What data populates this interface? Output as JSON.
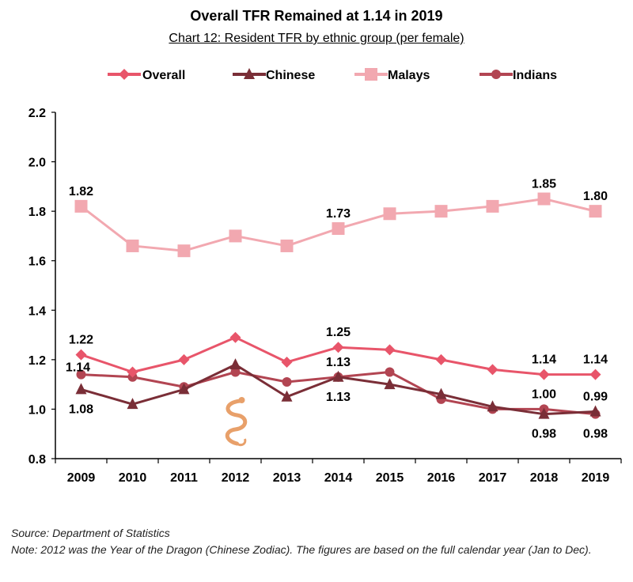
{
  "title": "Overall TFR Remained at 1.14 in 2019",
  "subtitle": "Chart 12: Resident TFR by ethnic group (per female)",
  "source": "Source: Department of Statistics",
  "note": "Note: 2012 was the Year of the Dragon (Chinese Zodiac). The figures are based on the full calendar year (Jan to Dec).",
  "chart_data": {
    "type": "line",
    "x": [
      "2009",
      "2010",
      "2011",
      "2012",
      "2013",
      "2014",
      "2015",
      "2016",
      "2017",
      "2018",
      "2019"
    ],
    "ylim": [
      0.8,
      2.2
    ],
    "yticks": [
      "0.8",
      "1.0",
      "1.2",
      "1.4",
      "1.6",
      "1.8",
      "2.0",
      "2.2"
    ],
    "grid": false,
    "legend_position": "top",
    "series": [
      {
        "name": "Overall",
        "color": "#e8556a",
        "marker": "diamond",
        "values": [
          1.22,
          1.15,
          1.2,
          1.29,
          1.19,
          1.25,
          1.24,
          1.2,
          1.16,
          1.14,
          1.14
        ]
      },
      {
        "name": "Chinese",
        "color": "#7a2e37",
        "marker": "triangle",
        "values": [
          1.08,
          1.02,
          1.08,
          1.18,
          1.05,
          1.13,
          1.1,
          1.06,
          1.01,
          0.98,
          0.99
        ]
      },
      {
        "name": "Malays",
        "color": "#f2a8b0",
        "marker": "square",
        "values": [
          1.82,
          1.66,
          1.64,
          1.7,
          1.66,
          1.73,
          1.79,
          1.8,
          1.82,
          1.85,
          1.8
        ]
      },
      {
        "name": "Indians",
        "color": "#b24552",
        "marker": "circle",
        "values": [
          1.14,
          1.13,
          1.09,
          1.15,
          1.11,
          1.13,
          1.15,
          1.04,
          1.0,
          1.0,
          0.98
        ]
      }
    ],
    "data_labels": [
      {
        "series": "Malays",
        "x": "2009",
        "text": "1.82",
        "pos": "above"
      },
      {
        "series": "Malays",
        "x": "2014",
        "text": "1.73",
        "pos": "above"
      },
      {
        "series": "Malays",
        "x": "2018",
        "text": "1.85",
        "pos": "above"
      },
      {
        "series": "Malays",
        "x": "2019",
        "text": "1.80",
        "pos": "above"
      },
      {
        "series": "Overall",
        "x": "2009",
        "text": "1.22",
        "pos": "above"
      },
      {
        "series": "Overall",
        "x": "2014",
        "text": "1.25",
        "pos": "above"
      },
      {
        "series": "Overall",
        "x": "2018",
        "text": "1.14",
        "pos": "above"
      },
      {
        "series": "Overall",
        "x": "2019",
        "text": "1.14",
        "pos": "above"
      },
      {
        "series": "Indians",
        "x": "2009",
        "text": "1.14",
        "pos": "left-above"
      },
      {
        "series": "Indians",
        "x": "2014",
        "text": "1.13",
        "pos": "above"
      },
      {
        "series": "Chinese",
        "x": "2009",
        "text": "1.08",
        "pos": "below"
      },
      {
        "series": "Chinese",
        "x": "2014",
        "text": "1.13",
        "pos": "below"
      },
      {
        "series": "Indians",
        "x": "2018",
        "text": "1.00",
        "pos": "above"
      },
      {
        "series": "Chinese",
        "x": "2018",
        "text": "0.98",
        "pos": "below"
      },
      {
        "series": "Chinese",
        "x": "2019",
        "text": "0.99",
        "pos": "above"
      },
      {
        "series": "Indians",
        "x": "2019",
        "text": "0.98",
        "pos": "below"
      }
    ],
    "annotation_icon": {
      "name": "dragon-icon",
      "x": "2012",
      "color": "#e8a06a"
    }
  }
}
